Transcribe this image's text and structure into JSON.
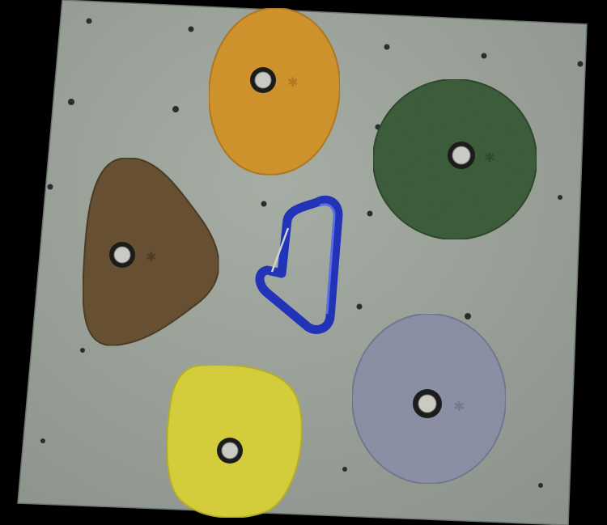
{
  "scene": {
    "subject": "climbing-wall",
    "colors": {
      "background": "#000000",
      "wall": "#a6ada4",
      "wall_shadow": "#8c938c",
      "hole": "#2a2d2c",
      "bolt_washer": "#1c1c1c",
      "bolt_head": "#c9cac4"
    },
    "holds": [
      {
        "name": "orange-oval-hold",
        "color": "#d4962e",
        "shade": "#b27a22"
      },
      {
        "name": "green-round-hold",
        "color": "#3e5f3c",
        "shade": "#2f4a2e"
      },
      {
        "name": "brown-triangle-hold",
        "color": "#6a5233",
        "shade": "#4f3c25"
      },
      {
        "name": "grey-round-hold",
        "color": "#8f93a9",
        "shade": "#767a91"
      },
      {
        "name": "yellow-square-hold",
        "color": "#d9d23c",
        "shade": "#b9b22c"
      }
    ],
    "carabiner": {
      "color": "#2233b8",
      "highlight": "#5a6ee6",
      "gate_color": "#cfd3d6"
    }
  }
}
